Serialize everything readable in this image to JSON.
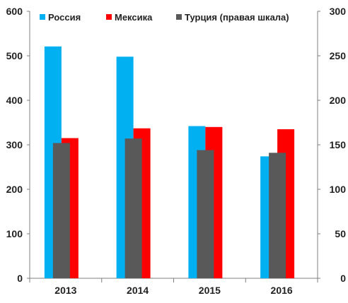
{
  "chart_data": {
    "type": "bar",
    "categories": [
      "2013",
      "2014",
      "2015",
      "2016"
    ],
    "series": [
      {
        "name": "Россия",
        "axis": "left",
        "color": "#00B0F0",
        "values": [
          521,
          498,
          342,
          274
        ]
      },
      {
        "name": "Мексика",
        "axis": "left",
        "color": "#FF0000",
        "values": [
          315,
          337,
          340,
          335
        ]
      },
      {
        "name": "Турция (правая шкала)",
        "axis": "right",
        "color": "#595959",
        "values": [
          152,
          157,
          144,
          141
        ]
      }
    ],
    "y_left": {
      "min": 0,
      "max": 600,
      "ticks": [
        "0",
        "100",
        "200",
        "300",
        "400",
        "500",
        "600"
      ]
    },
    "y_right": {
      "min": 0,
      "max": 300,
      "ticks": [
        "0",
        "50",
        "100",
        "150",
        "200",
        "250",
        "300"
      ]
    },
    "grid": false,
    "legend": "top"
  }
}
